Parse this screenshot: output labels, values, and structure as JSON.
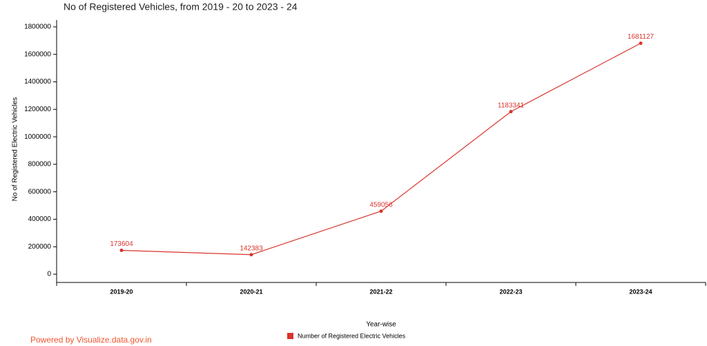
{
  "chart_data": {
    "type": "line",
    "title": "No of Registered Vehicles, from 2019 - 20 to 2023 - 24",
    "x_label": "Year-wise",
    "y_label": "No of Registered Electric Vehicles",
    "categories": [
      "2019-20",
      "2020-21",
      "2021-22",
      "2022-23",
      "2023-24"
    ],
    "series": [
      {
        "name": "Number of Registered Electric Vehicles",
        "color": "#d9342b",
        "values": [
          173604,
          142383,
          459056,
          1183341,
          1681127
        ]
      }
    ],
    "ylim": [
      -60000,
      1850000
    ],
    "yticks": [
      0,
      200000,
      400000,
      600000,
      800000,
      1000000,
      1200000,
      1400000,
      1600000,
      1800000
    ],
    "grid": false,
    "data_labels": true,
    "legend": "bottom",
    "credit": "Powered by Visualize.data.gov.in"
  }
}
